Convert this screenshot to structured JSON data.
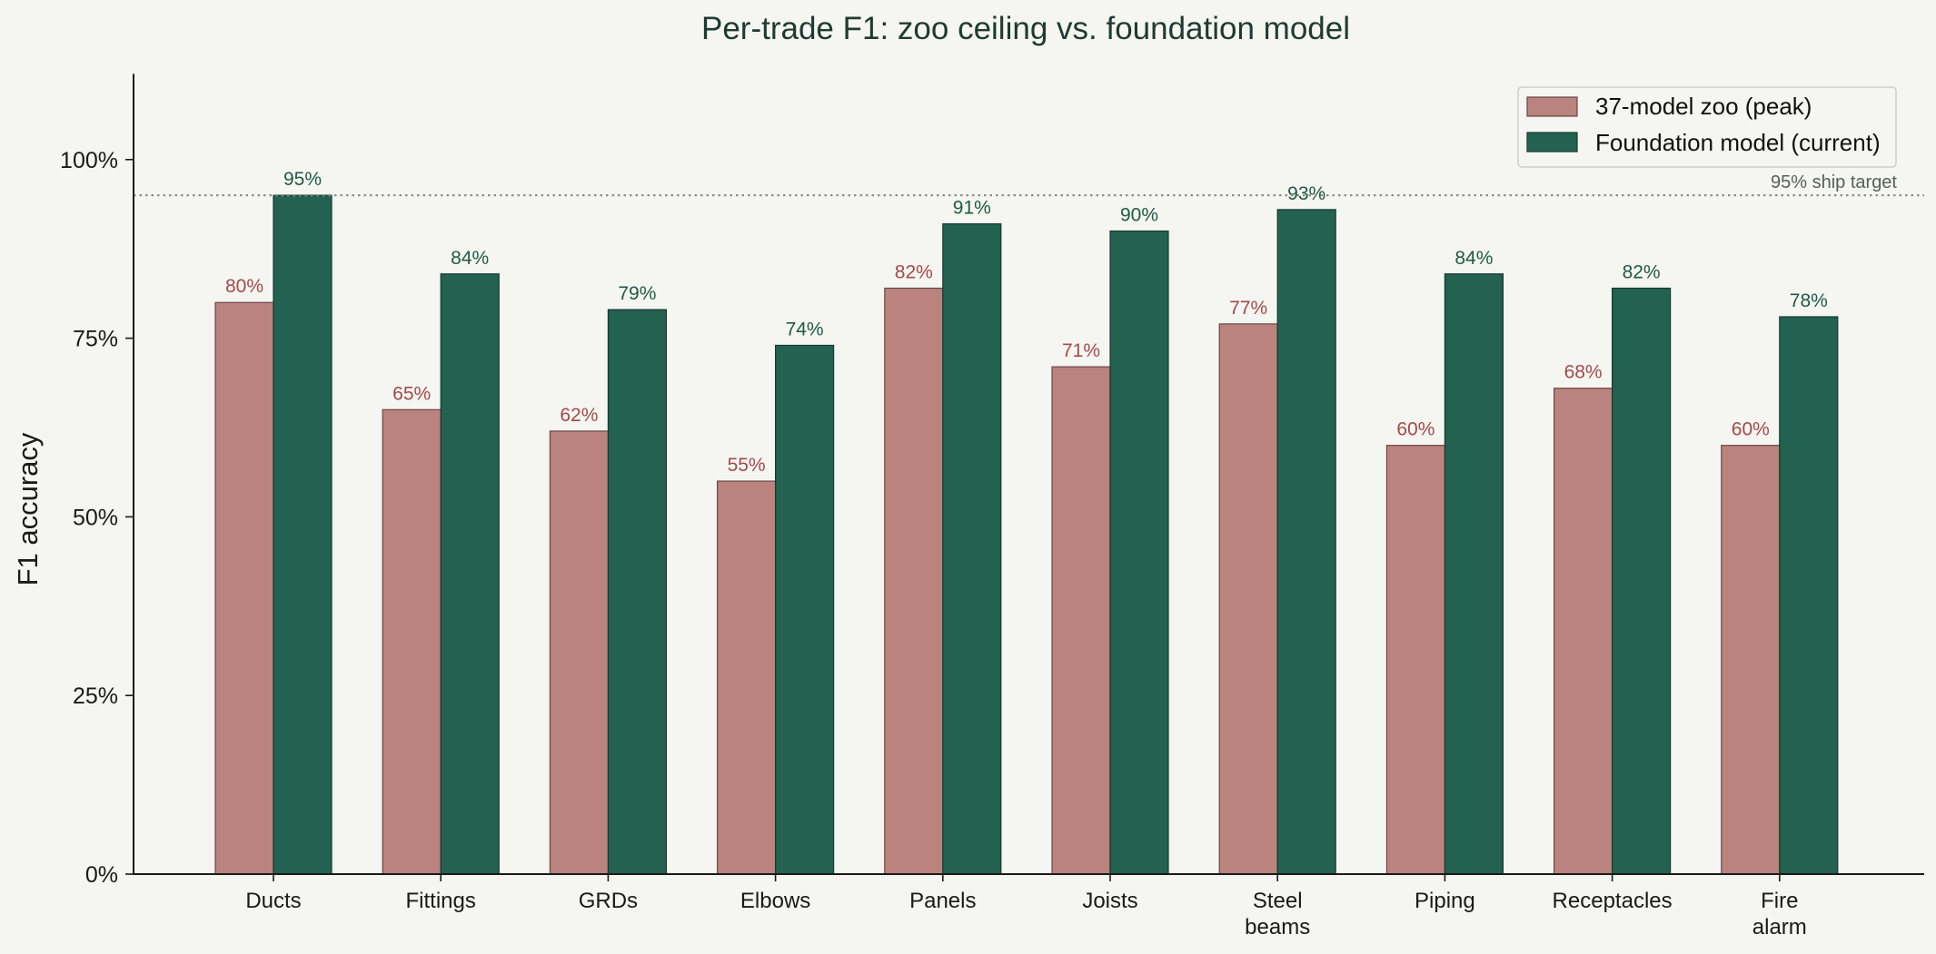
{
  "chart_data": {
    "type": "bar",
    "title": "Per-trade F1: zoo ceiling vs. foundation model",
    "ylabel": "F1 accuracy",
    "xlabel": "",
    "ylim": [
      0,
      112
    ],
    "yticks": [
      0,
      25,
      50,
      75,
      100
    ],
    "ytick_labels": [
      "0%",
      "25%",
      "50%",
      "75%",
      "100%"
    ],
    "categories": [
      [
        "Ducts"
      ],
      [
        "Fittings"
      ],
      [
        "GRDs"
      ],
      [
        "Elbows"
      ],
      [
        "Panels"
      ],
      [
        "Joists"
      ],
      [
        "Steel",
        "beams"
      ],
      [
        "Piping"
      ],
      [
        "Receptacles"
      ],
      [
        "Fire",
        "alarm"
      ]
    ],
    "series": [
      {
        "name": "37-model zoo (peak)",
        "color": "#bb837e",
        "label_color": "#a14b4b",
        "values": [
          80,
          65,
          62,
          55,
          82,
          71,
          77,
          60,
          68,
          60
        ],
        "data_labels": [
          "80%",
          "65%",
          "62%",
          "55%",
          "82%",
          "71%",
          "77%",
          "60%",
          "68%",
          "60%"
        ]
      },
      {
        "name": "Foundation model (current)",
        "color": "#236150",
        "label_color": "#1f5a48",
        "values": [
          95,
          84,
          79,
          74,
          91,
          90,
          93,
          84,
          82,
          78
        ],
        "data_labels": [
          "95%",
          "84%",
          "79%",
          "74%",
          "91%",
          "90%",
          "93%",
          "84%",
          "82%",
          "78%"
        ]
      }
    ],
    "reference_line": {
      "value": 95,
      "label": "95% ship target",
      "style": "dotted"
    },
    "legend_position": "top-right",
    "grid": false
  }
}
